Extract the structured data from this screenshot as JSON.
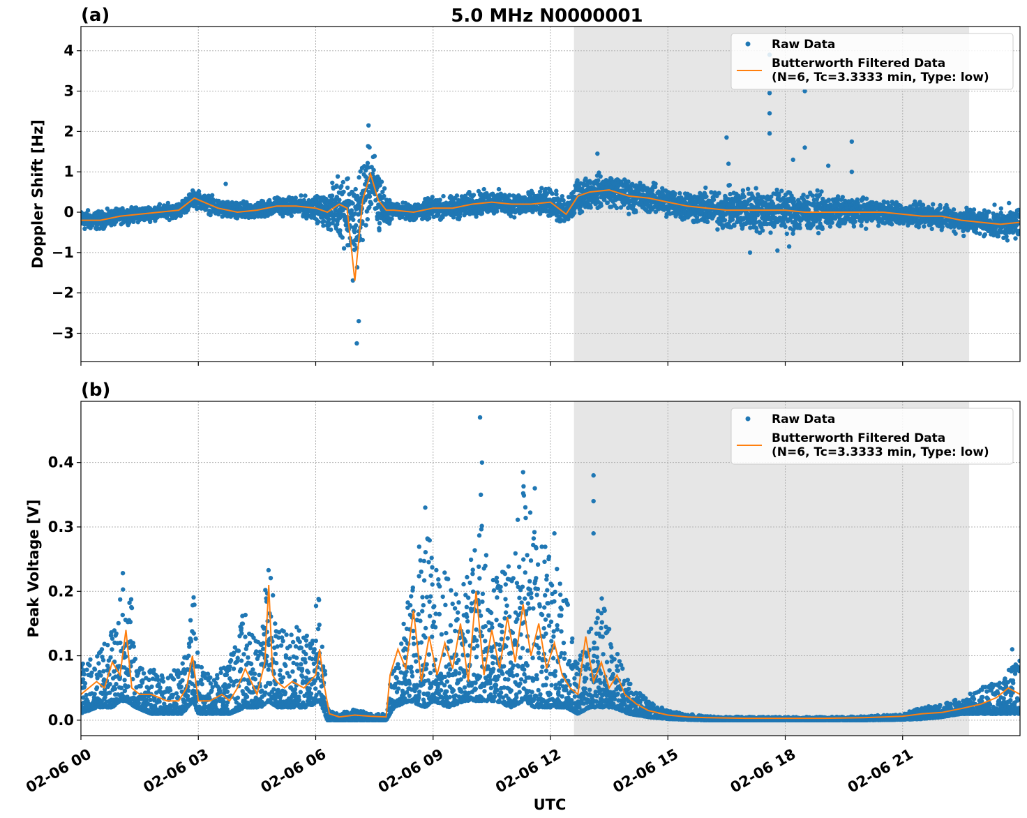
{
  "figure": {
    "title": "5.0 MHz N0000001",
    "xlabel": "UTC"
  },
  "colors": {
    "raw": "#1f77b4",
    "filtered": "#ff7f0e",
    "shade": "#e6e6e6",
    "grid": "#b0b0b0"
  },
  "chart_data": [
    {
      "type": "scatter",
      "panel_label": "(a)",
      "ylabel": "Doppler Shift [Hz]",
      "xlim": [
        "02-06 00:00",
        "02-07 00:00"
      ],
      "ylim": [
        -3.7,
        4.6
      ],
      "yticks": [
        -3,
        -2,
        -1,
        0,
        1,
        2,
        3,
        4
      ],
      "ytick_labels": [
        "−3",
        "−2",
        "−1",
        "0",
        "1",
        "2",
        "3",
        "4"
      ],
      "xticks": [
        "02-06 00",
        "02-06 03",
        "02-06 06",
        "02-06 09",
        "02-06 12",
        "02-06 15",
        "02-06 18",
        "02-06 21"
      ],
      "grid": true,
      "legend_position": "top-right",
      "shaded_span_hours": [
        12.6,
        22.7
      ],
      "series": [
        {
          "name": "Raw Data",
          "kind": "points",
          "x_hours": [
            0,
            0.5,
            1,
            1.5,
            2,
            2.5,
            2.9,
            3.5,
            4,
            4.5,
            5,
            5.5,
            6,
            6.3,
            6.6,
            6.8,
            7.0,
            7.2,
            7.4,
            7.6,
            7.8,
            8,
            8.5,
            9,
            9.5,
            10,
            10.5,
            11,
            11.5,
            12,
            12.4,
            12.7,
            13,
            13.5,
            14,
            14.5,
            15,
            15.5,
            16,
            16.5,
            17,
            17.5,
            18,
            18.5,
            19,
            19.5,
            20,
            20.5,
            21,
            21.5,
            22,
            22.5,
            23,
            23.5,
            24
          ],
          "center": [
            -0.2,
            -0.2,
            -0.1,
            -0.05,
            0,
            0.05,
            0.35,
            0.1,
            0,
            0.05,
            0.15,
            0.15,
            0.1,
            0,
            0.2,
            0.1,
            -0.4,
            0.3,
            0.8,
            0.3,
            0.05,
            0.05,
            0,
            0.1,
            0.1,
            0.2,
            0.25,
            0.2,
            0.2,
            0.25,
            -0.05,
            0.4,
            0.5,
            0.55,
            0.4,
            0.35,
            0.25,
            0.15,
            0.1,
            0.05,
            0.05,
            0.05,
            0.05,
            0,
            0,
            0,
            0,
            0,
            -0.05,
            -0.1,
            -0.1,
            -0.2,
            -0.25,
            -0.3,
            -0.25
          ],
          "spread": [
            0.35,
            0.3,
            0.25,
            0.25,
            0.25,
            0.25,
            0.3,
            0.3,
            0.3,
            0.3,
            0.3,
            0.3,
            0.4,
            0.55,
            1.1,
            1.3,
            1.8,
            1.4,
            1.1,
            1.3,
            0.5,
            0.25,
            0.3,
            0.35,
            0.4,
            0.4,
            0.4,
            0.4,
            0.4,
            0.45,
            0.5,
            0.55,
            0.55,
            0.55,
            0.55,
            0.5,
            0.5,
            0.55,
            0.6,
            0.7,
            0.75,
            0.75,
            0.75,
            0.7,
            0.55,
            0.5,
            0.45,
            0.4,
            0.4,
            0.4,
            0.4,
            0.45,
            0.45,
            0.5,
            0.55
          ],
          "outliers": [
            [
              7.35,
              2.15
            ],
            [
              7.05,
              -3.25
            ],
            [
              7.1,
              -2.7
            ],
            [
              3.7,
              0.7
            ],
            [
              13.2,
              1.45
            ],
            [
              16.5,
              1.85
            ],
            [
              16.55,
              1.2
            ],
            [
              17.6,
              3.9
            ],
            [
              17.6,
              2.95
            ],
            [
              17.6,
              2.45
            ],
            [
              17.6,
              1.95
            ],
            [
              18.5,
              3.0
            ],
            [
              18.5,
              1.6
            ],
            [
              19.7,
              1.75
            ],
            [
              19.7,
              1.0
            ],
            [
              17.1,
              -1.0
            ],
            [
              17.8,
              -0.95
            ],
            [
              19.1,
              1.15
            ],
            [
              18.2,
              1.3
            ],
            [
              18.1,
              -0.85
            ]
          ]
        },
        {
          "name": "Butterworth Filtered Data\n(N=6, Tc=3.3333 min, Type: low)",
          "kind": "line",
          "x_hours": [
            0,
            0.5,
            1,
            1.5,
            2,
            2.5,
            2.9,
            3.5,
            4,
            4.5,
            5,
            5.5,
            6,
            6.3,
            6.6,
            6.8,
            7.0,
            7.2,
            7.4,
            7.6,
            7.8,
            8,
            8.5,
            9,
            9.5,
            10,
            10.5,
            11,
            11.5,
            12,
            12.4,
            12.7,
            13,
            13.5,
            14,
            14.5,
            15,
            15.5,
            16,
            16.5,
            17,
            17.5,
            18,
            18.5,
            19,
            19.5,
            20,
            20.5,
            21,
            21.5,
            22,
            22.5,
            23,
            23.5,
            24
          ],
          "y": [
            -0.2,
            -0.2,
            -0.1,
            -0.05,
            0,
            0.05,
            0.35,
            0.1,
            0,
            0.05,
            0.15,
            0.15,
            0.1,
            0,
            0.2,
            0.1,
            -1.7,
            0.3,
            0.95,
            0.3,
            0.05,
            0.05,
            0,
            0.1,
            0.1,
            0.2,
            0.25,
            0.2,
            0.2,
            0.25,
            -0.05,
            0.4,
            0.5,
            0.55,
            0.4,
            0.35,
            0.25,
            0.15,
            0.1,
            0.05,
            0.05,
            0.05,
            0.05,
            0,
            0,
            0,
            0,
            0,
            -0.05,
            -0.1,
            -0.1,
            -0.2,
            -0.25,
            -0.3,
            -0.25
          ]
        }
      ]
    },
    {
      "type": "scatter",
      "panel_label": "(b)",
      "ylabel": "Peak Voltage [V]",
      "xlim": [
        "02-06 00:00",
        "02-07 00:00"
      ],
      "ylim": [
        -0.024,
        0.495
      ],
      "yticks": [
        0.0,
        0.1,
        0.2,
        0.3,
        0.4
      ],
      "ytick_labels": [
        "0.0",
        "0.1",
        "0.2",
        "0.3",
        "0.4"
      ],
      "xticks": [
        "02-06 00",
        "02-06 03",
        "02-06 06",
        "02-06 09",
        "02-06 12",
        "02-06 15",
        "02-06 18",
        "02-06 21"
      ],
      "grid": true,
      "legend_position": "top-right",
      "shaded_span_hours": [
        12.6,
        22.7
      ],
      "series": [
        {
          "name": "Raw Data",
          "kind": "points",
          "x_hours": [
            0,
            0.4,
            0.8,
            1.0,
            1.15,
            1.4,
            1.8,
            2.2,
            2.6,
            2.85,
            3.0,
            3.4,
            3.8,
            4.2,
            4.6,
            4.8,
            5.0,
            5.4,
            5.8,
            6.1,
            6.3,
            6.6,
            7.0,
            7.4,
            7.8,
            8.0,
            8.4,
            8.8,
            9.0,
            9.4,
            9.8,
            10.2,
            10.6,
            11.0,
            11.3,
            11.6,
            12.0,
            12.4,
            12.7,
            13.0,
            13.3,
            13.6,
            14.0,
            14.5,
            15,
            15.5,
            16,
            17,
            18,
            19,
            20,
            21,
            21.5,
            22,
            22.5,
            23,
            23.5,
            24
          ],
          "low": [
            0.01,
            0.02,
            0.02,
            0.03,
            0.03,
            0.02,
            0.01,
            0.01,
            0.01,
            0.03,
            0.01,
            0.01,
            0.01,
            0.02,
            0.02,
            0.03,
            0.02,
            0.02,
            0.02,
            0.03,
            0.0,
            0.0,
            0.0,
            0.0,
            0.0,
            0.02,
            0.03,
            0.02,
            0.03,
            0.02,
            0.03,
            0.03,
            0.03,
            0.02,
            0.03,
            0.02,
            0.02,
            0.02,
            0.01,
            0.02,
            0.02,
            0.02,
            0.01,
            0.005,
            0.002,
            0.001,
            0.0,
            0.0,
            0.0,
            0.0,
            0.0,
            0.001,
            0.002,
            0.005,
            0.01,
            0.01,
            0.01,
            0.01
          ],
          "high": [
            0.09,
            0.1,
            0.14,
            0.2,
            0.31,
            0.09,
            0.08,
            0.07,
            0.09,
            0.25,
            0.09,
            0.07,
            0.1,
            0.18,
            0.12,
            0.27,
            0.14,
            0.15,
            0.14,
            0.2,
            0.02,
            0.01,
            0.02,
            0.01,
            0.01,
            0.1,
            0.2,
            0.33,
            0.25,
            0.23,
            0.21,
            0.35,
            0.22,
            0.25,
            0.38,
            0.3,
            0.26,
            0.2,
            0.09,
            0.14,
            0.2,
            0.12,
            0.06,
            0.03,
            0.015,
            0.01,
            0.006,
            0.005,
            0.005,
            0.005,
            0.006,
            0.01,
            0.02,
            0.025,
            0.035,
            0.05,
            0.07,
            0.1
          ],
          "outliers": [
            [
              10.2,
              0.47
            ],
            [
              10.25,
              0.4
            ],
            [
              10.22,
              0.35
            ],
            [
              11.3,
              0.385
            ],
            [
              11.6,
              0.36
            ],
            [
              13.1,
              0.38
            ],
            [
              13.1,
              0.34
            ],
            [
              13.1,
              0.29
            ],
            [
              12.1,
              0.29
            ],
            [
              8.8,
              0.33
            ],
            [
              23.8,
              0.11
            ]
          ]
        },
        {
          "name": "Butterworth Filtered Data\n(N=6, Tc=3.3333 min, Type: low)",
          "kind": "line",
          "x_hours": [
            0,
            0.2,
            0.4,
            0.6,
            0.8,
            1.0,
            1.15,
            1.3,
            1.5,
            1.8,
            2.2,
            2.5,
            2.7,
            2.85,
            3.0,
            3.3,
            3.6,
            3.8,
            4.0,
            4.2,
            4.5,
            4.7,
            4.8,
            4.9,
            5.0,
            5.2,
            5.4,
            5.7,
            6.0,
            6.1,
            6.2,
            6.35,
            6.6,
            7.0,
            7.4,
            7.8,
            7.9,
            8.1,
            8.3,
            8.5,
            8.7,
            8.9,
            9.1,
            9.3,
            9.5,
            9.7,
            9.9,
            10.1,
            10.3,
            10.5,
            10.7,
            10.9,
            11.1,
            11.3,
            11.5,
            11.7,
            11.9,
            12.1,
            12.3,
            12.5,
            12.7,
            12.9,
            13.1,
            13.3,
            13.5,
            13.7,
            13.9,
            14.2,
            14.5,
            15,
            15.5,
            16,
            17,
            18,
            19,
            20,
            21,
            21.5,
            22,
            22.5,
            23,
            23.4,
            23.7,
            24
          ],
          "y": [
            0.04,
            0.05,
            0.06,
            0.05,
            0.09,
            0.07,
            0.14,
            0.05,
            0.04,
            0.04,
            0.03,
            0.03,
            0.05,
            0.1,
            0.03,
            0.03,
            0.04,
            0.03,
            0.05,
            0.08,
            0.04,
            0.09,
            0.21,
            0.07,
            0.06,
            0.05,
            0.06,
            0.05,
            0.07,
            0.11,
            0.06,
            0.01,
            0.005,
            0.008,
            0.006,
            0.005,
            0.07,
            0.11,
            0.08,
            0.17,
            0.06,
            0.13,
            0.07,
            0.12,
            0.08,
            0.15,
            0.06,
            0.2,
            0.07,
            0.14,
            0.08,
            0.16,
            0.09,
            0.18,
            0.1,
            0.15,
            0.08,
            0.12,
            0.07,
            0.05,
            0.04,
            0.13,
            0.06,
            0.09,
            0.05,
            0.07,
            0.04,
            0.025,
            0.015,
            0.008,
            0.005,
            0.004,
            0.003,
            0.003,
            0.003,
            0.004,
            0.006,
            0.01,
            0.012,
            0.018,
            0.025,
            0.035,
            0.05,
            0.04
          ]
        }
      ]
    }
  ]
}
